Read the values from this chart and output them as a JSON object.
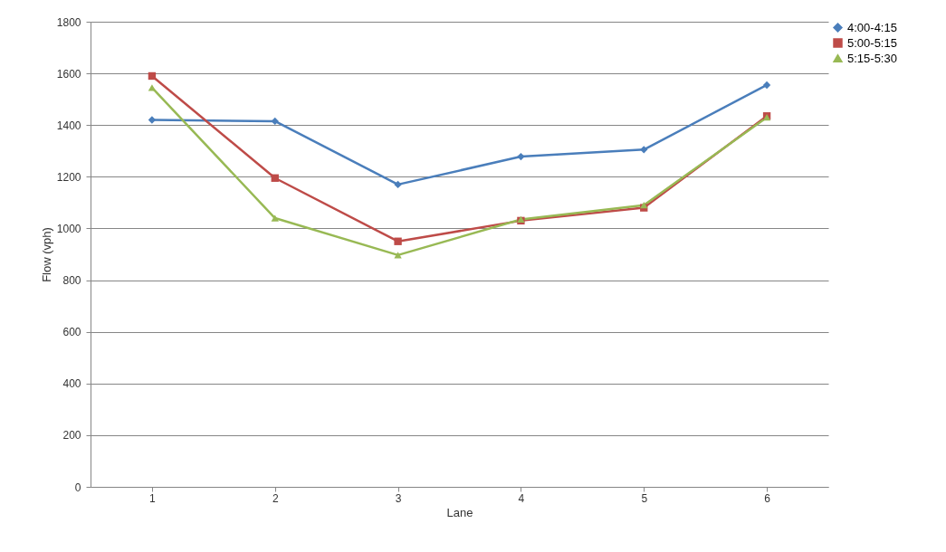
{
  "chart_data": {
    "type": "line",
    "xlabel": "Lane",
    "ylabel": "Flow (vph)",
    "categories": [
      "1",
      "2",
      "3",
      "4",
      "5",
      "6"
    ],
    "series": [
      {
        "name": "4:00-4:15",
        "color": "#4a7ebb",
        "marker": "diamond",
        "values": [
          1420,
          1415,
          1170,
          1278,
          1305,
          1555
        ]
      },
      {
        "name": "5:00-5:15",
        "color": "#be4b48",
        "marker": "square",
        "values": [
          1590,
          1195,
          950,
          1030,
          1080,
          1435
        ]
      },
      {
        "name": "5:15-5:30",
        "color": "#98b954",
        "marker": "triangle",
        "values": [
          1545,
          1040,
          897,
          1035,
          1090,
          1430
        ]
      }
    ],
    "ylim": [
      0,
      1800
    ],
    "yticks": [
      0,
      200,
      400,
      600,
      800,
      1000,
      1200,
      1400,
      1600,
      1800
    ],
    "grid": "y",
    "legend": "right",
    "line_style": "solid"
  }
}
